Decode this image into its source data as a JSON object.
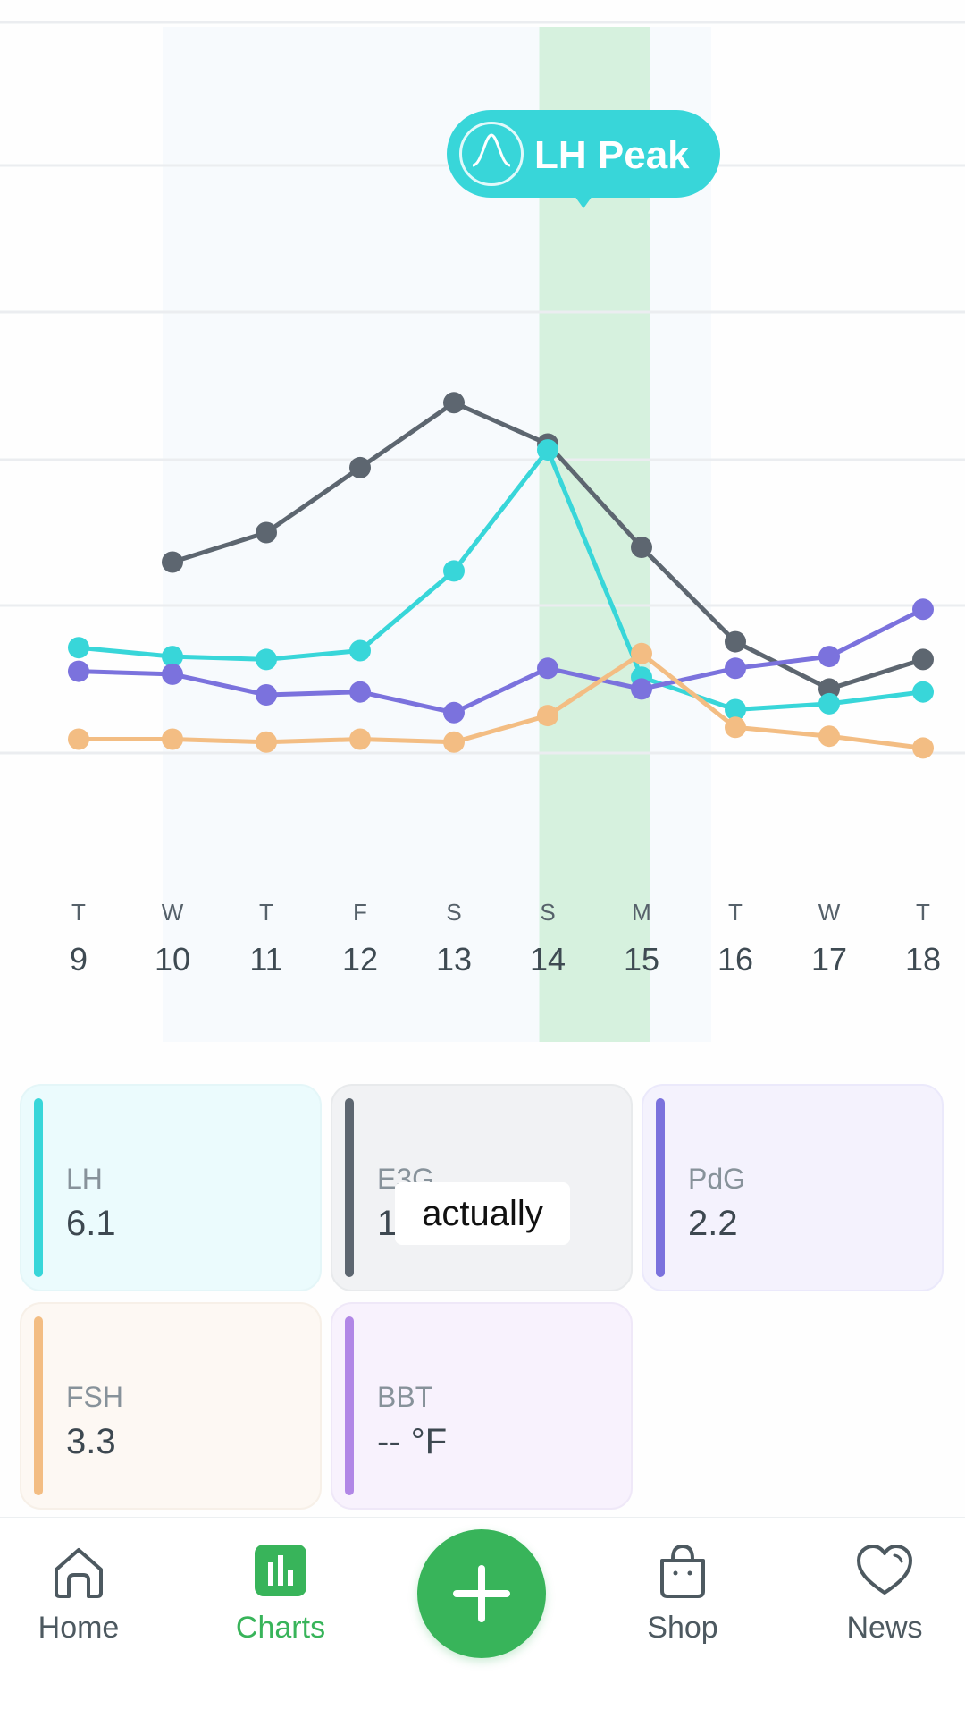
{
  "chart_data": {
    "type": "line",
    "x": [
      "9",
      "10",
      "11",
      "12",
      "13",
      "14",
      "15",
      "16",
      "17",
      "18"
    ],
    "day_letters": [
      "T",
      "W",
      "T",
      "F",
      "S",
      "S",
      "M",
      "T",
      "W",
      "T"
    ],
    "highlight_day": "14",
    "series": [
      {
        "key": "E3G",
        "color": "#5d6670",
        "values": [
          null,
          7.5,
          8.5,
          10.7,
          12.9,
          11.5,
          8.0,
          4.8,
          3.2,
          4.2
        ]
      },
      {
        "key": "LH",
        "color": "#38d6d9",
        "values": [
          4.6,
          4.3,
          4.2,
          4.5,
          7.2,
          11.3,
          3.6,
          2.5,
          2.7,
          3.1
        ]
      },
      {
        "key": "PdG",
        "color": "#7b72dd",
        "values": [
          3.8,
          3.7,
          3.0,
          3.1,
          2.4,
          3.9,
          3.2,
          3.9,
          4.3,
          5.9
        ]
      },
      {
        "key": "FSH",
        "color": "#f3bd83",
        "values": [
          1.5,
          1.5,
          1.4,
          1.5,
          1.4,
          2.3,
          4.4,
          1.9,
          1.6,
          1.2
        ]
      }
    ],
    "annotation": {
      "label": "LH Peak",
      "x": "14"
    }
  },
  "cards": [
    {
      "label": "LH",
      "value": "6.1",
      "bar_color": "#38d6d9",
      "bg": "#ebfbfd",
      "border": "#e4f6f8"
    },
    {
      "label": "E3G",
      "value": "12",
      "bar_color": "#5d6670",
      "bg": "#f1f2f4",
      "border": "#e8eaec"
    },
    {
      "label": "PdG",
      "value": "2.2",
      "bar_color": "#7b72dd",
      "bg": "#f4f2fd",
      "border": "#ebe9fb"
    },
    {
      "label": "FSH",
      "value": "3.3",
      "bar_color": "#f3bd83",
      "bg": "#fdf8f3",
      "border": "#f7f0e8"
    },
    {
      "label": "BBT",
      "value": "-- °F",
      "bar_color": "#b187e6",
      "bg": "#f8f2fd",
      "border": "#efe8f8"
    }
  ],
  "caption": "actually",
  "nav": {
    "home": "Home",
    "charts": "Charts",
    "shop": "Shop",
    "news": "News",
    "active_color": "#38b45a",
    "inactive_color": "#4d5960"
  }
}
